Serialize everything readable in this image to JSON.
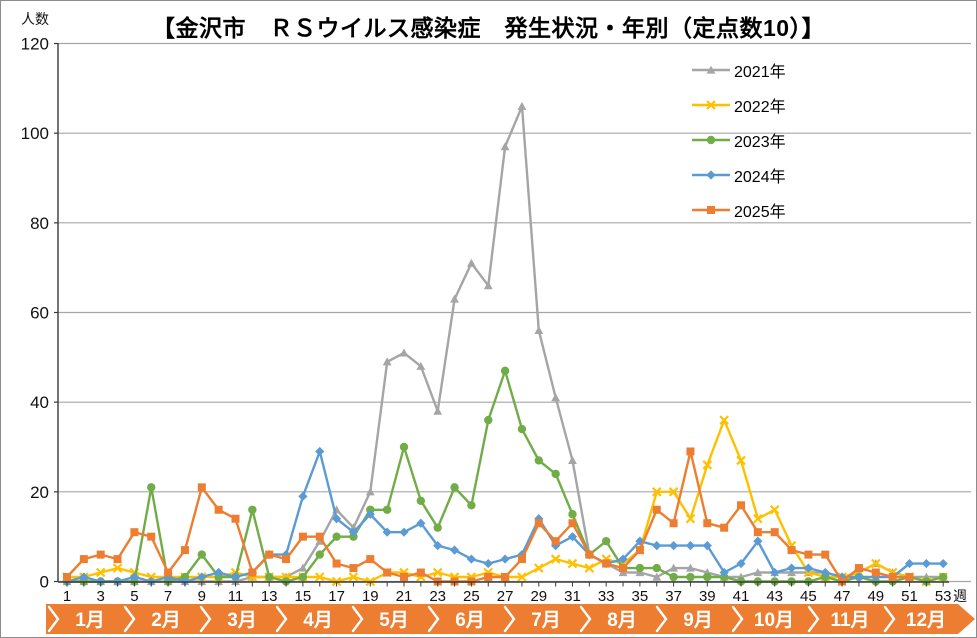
{
  "page": {
    "background": "#ffffff",
    "border_color": "#8c8c8c"
  },
  "chart_data": {
    "type": "line",
    "title": "【金沢市　ＲＳウイルス感染症　発生状況・年別（定点数10）】",
    "ylabel": "人数",
    "xlabel": "週",
    "ylim": [
      0,
      120
    ],
    "y_ticks": [
      0,
      20,
      40,
      60,
      80,
      100,
      120
    ],
    "x_tick_labels": [
      "1",
      "3",
      "5",
      "7",
      "9",
      "11",
      "13",
      "15",
      "17",
      "19",
      "21",
      "23",
      "25",
      "27",
      "29",
      "31",
      "33",
      "35",
      "37",
      "39",
      "41",
      "43",
      "45",
      "47",
      "49",
      "51",
      "53"
    ],
    "weeks": 53,
    "grid": true,
    "grid_color": "#a6a6a6",
    "axis_color": "#3a3a3a",
    "legend_position": "upper-right-inside",
    "months": [
      "1月",
      "2月",
      "3月",
      "4月",
      "5月",
      "6月",
      "7月",
      "8月",
      "9月",
      "10月",
      "11月",
      "12月"
    ],
    "month_band_color": "#ED7D31",
    "series": [
      {
        "name": "2021年",
        "color": "#A5A5A5",
        "marker": "triangle",
        "values": [
          0,
          0,
          0,
          0,
          0,
          0,
          0,
          0,
          0,
          0,
          0,
          1,
          1,
          1,
          3,
          9,
          16,
          12,
          20,
          49,
          51,
          48,
          38,
          63,
          71,
          66,
          97,
          106,
          56,
          41,
          27,
          6,
          4,
          2,
          2,
          1,
          3,
          3,
          2,
          1,
          1,
          2,
          2,
          2,
          2,
          2,
          1,
          2,
          4,
          2,
          1,
          1,
          1
        ]
      },
      {
        "name": "2022年",
        "color": "#FFC000",
        "marker": "x",
        "values": [
          1,
          1,
          2,
          3,
          2,
          1,
          1,
          1,
          1,
          1,
          2,
          1,
          1,
          1,
          1,
          1,
          0,
          1,
          0,
          2,
          2,
          1,
          2,
          1,
          1,
          2,
          1,
          1,
          3,
          5,
          4,
          3,
          5,
          4,
          7,
          20,
          20,
          14,
          26,
          36,
          27,
          14,
          16,
          8,
          2,
          1,
          1,
          2,
          4,
          2,
          1,
          0,
          1
        ]
      },
      {
        "name": "2023年",
        "color": "#70AD47",
        "marker": "circle",
        "values": [
          0,
          0,
          0,
          0,
          0,
          21,
          0,
          1,
          6,
          1,
          1,
          16,
          1,
          0,
          1,
          6,
          10,
          10,
          16,
          16,
          30,
          18,
          12,
          21,
          17,
          36,
          47,
          34,
          27,
          24,
          15,
          6,
          9,
          3,
          3,
          3,
          1,
          1,
          1,
          1,
          0,
          0,
          0,
          0,
          0,
          1,
          0,
          1,
          0,
          0,
          1,
          0,
          1
        ]
      },
      {
        "name": "2024年",
        "color": "#5B9BD5",
        "marker": "diamond",
        "values": [
          0,
          1,
          0,
          0,
          1,
          0,
          1,
          0,
          1,
          2,
          1,
          2,
          6,
          6,
          19,
          29,
          14,
          11,
          15,
          11,
          11,
          13,
          8,
          7,
          5,
          4,
          5,
          6,
          14,
          8,
          10,
          6,
          4,
          5,
          9,
          8,
          8,
          8,
          8,
          2,
          4,
          9,
          2,
          3,
          3,
          2,
          1,
          1,
          1,
          1,
          4,
          4,
          4
        ]
      },
      {
        "name": "2025年",
        "color": "#ED7D31",
        "marker": "square",
        "values": [
          1,
          5,
          6,
          5,
          11,
          10,
          2,
          7,
          21,
          16,
          14,
          2,
          6,
          5,
          10,
          10,
          4,
          3,
          5,
          2,
          1,
          2,
          0,
          0,
          0,
          1,
          1,
          5,
          13,
          9,
          13,
          6,
          4,
          3,
          7,
          16,
          13,
          29,
          13,
          12,
          17,
          11,
          11,
          7,
          6,
          6,
          0,
          3,
          2,
          1,
          1,
          null,
          null
        ]
      }
    ]
  }
}
